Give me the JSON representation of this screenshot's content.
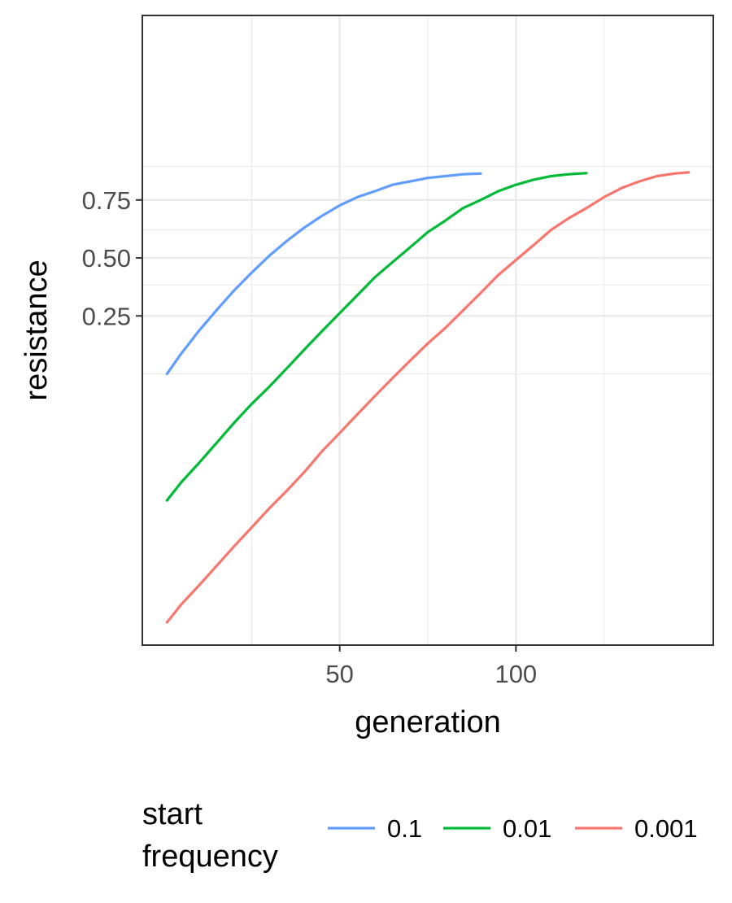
{
  "chart_data": {
    "type": "line",
    "xlabel": "generation",
    "ylabel": "resistance",
    "x_ticks": [
      50,
      100
    ],
    "x_tick_labels": [
      "50",
      "100"
    ],
    "y_ticks": [
      0.75,
      0.5,
      0.25
    ],
    "y_tick_labels": [
      "0.75",
      "0.50",
      "0.25"
    ],
    "ylim": [
      0.00065,
      0.99
    ],
    "xlim": [
      -6,
      156
    ],
    "y_scale": "log-like",
    "grid": true,
    "legend": {
      "title": [
        "start",
        "frequency"
      ],
      "position": "bottom"
    },
    "series": [
      {
        "name": "0.1",
        "color": "#619CFF",
        "points": [
          [
            1,
            0.1
          ],
          [
            5,
            0.14
          ],
          [
            10,
            0.2
          ],
          [
            15,
            0.27
          ],
          [
            20,
            0.35
          ],
          [
            25,
            0.43
          ],
          [
            30,
            0.51
          ],
          [
            35,
            0.58
          ],
          [
            40,
            0.64
          ],
          [
            45,
            0.69
          ],
          [
            50,
            0.73
          ],
          [
            55,
            0.76
          ],
          [
            60,
            0.78
          ],
          [
            65,
            0.8
          ],
          [
            70,
            0.81
          ],
          [
            75,
            0.82
          ],
          [
            80,
            0.825
          ],
          [
            85,
            0.83
          ],
          [
            90,
            0.832
          ]
        ]
      },
      {
        "name": "0.01",
        "color": "#00BA38",
        "points": [
          [
            1,
            0.01
          ],
          [
            5,
            0.014
          ],
          [
            10,
            0.02
          ],
          [
            15,
            0.029
          ],
          [
            20,
            0.042
          ],
          [
            25,
            0.059
          ],
          [
            30,
            0.08
          ],
          [
            35,
            0.11
          ],
          [
            40,
            0.15
          ],
          [
            45,
            0.2
          ],
          [
            50,
            0.26
          ],
          [
            55,
            0.33
          ],
          [
            60,
            0.41
          ],
          [
            65,
            0.48
          ],
          [
            70,
            0.55
          ],
          [
            75,
            0.62
          ],
          [
            80,
            0.67
          ],
          [
            85,
            0.72
          ],
          [
            90,
            0.75
          ],
          [
            95,
            0.78
          ],
          [
            100,
            0.8
          ],
          [
            105,
            0.815
          ],
          [
            110,
            0.825
          ],
          [
            115,
            0.83
          ],
          [
            120,
            0.833
          ]
        ]
      },
      {
        "name": "0.001",
        "color": "#F8766D",
        "points": [
          [
            1,
            0.001
          ],
          [
            5,
            0.0014
          ],
          [
            10,
            0.002
          ],
          [
            15,
            0.0029
          ],
          [
            20,
            0.0042
          ],
          [
            25,
            0.006
          ],
          [
            30,
            0.0086
          ],
          [
            35,
            0.012
          ],
          [
            40,
            0.017
          ],
          [
            45,
            0.025
          ],
          [
            50,
            0.035
          ],
          [
            55,
            0.049
          ],
          [
            60,
            0.068
          ],
          [
            65,
            0.093
          ],
          [
            70,
            0.125
          ],
          [
            75,
            0.165
          ],
          [
            80,
            0.21
          ],
          [
            85,
            0.27
          ],
          [
            90,
            0.34
          ],
          [
            95,
            0.42
          ],
          [
            100,
            0.49
          ],
          [
            105,
            0.56
          ],
          [
            110,
            0.63
          ],
          [
            115,
            0.68
          ],
          [
            120,
            0.72
          ],
          [
            125,
            0.76
          ],
          [
            130,
            0.79
          ],
          [
            135,
            0.81
          ],
          [
            140,
            0.825
          ],
          [
            145,
            0.832
          ],
          [
            149,
            0.835
          ]
        ]
      }
    ]
  }
}
